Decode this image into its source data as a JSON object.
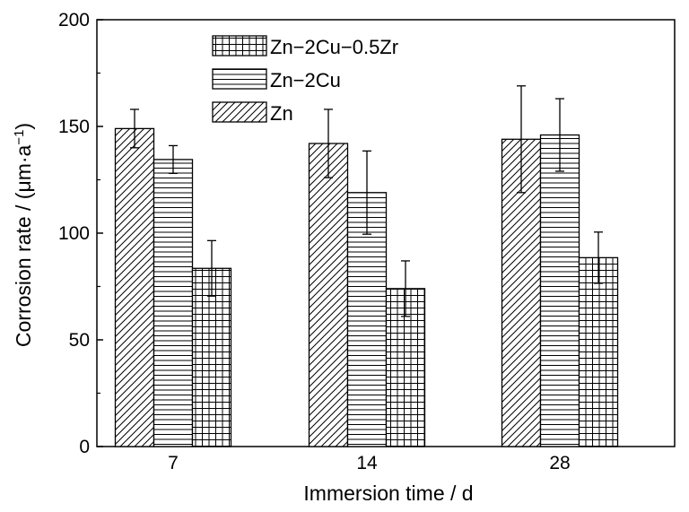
{
  "chart_data": {
    "type": "bar",
    "categories": [
      "7",
      "14",
      "28"
    ],
    "series": [
      {
        "name": "Zn",
        "pattern": "diagonal",
        "values": [
          149,
          142,
          144
        ],
        "errors": [
          9,
          16,
          25
        ]
      },
      {
        "name": "Zn−2Cu",
        "pattern": "horizontal",
        "values": [
          134.5,
          119,
          146
        ],
        "errors": [
          6.5,
          19.5,
          17
        ]
      },
      {
        "name": "Zn−2Cu−0.5Zr",
        "pattern": "grid",
        "values": [
          83.5,
          74,
          88.5
        ],
        "errors": [
          13,
          13,
          12
        ]
      }
    ],
    "legend_order": [
      "Zn−2Cu−0.5Zr",
      "Zn−2Cu",
      "Zn"
    ],
    "xlabel": "Immersion time / d",
    "ylabel": {
      "main": "Corrosion rate / (μm·a",
      "sup": "−1",
      "tail": ")"
    },
    "ylim": [
      0,
      200
    ],
    "yticks": [
      0,
      50,
      100,
      150,
      200
    ],
    "legend_position": "top-center",
    "grid": false,
    "colors": {
      "stroke": "#000000",
      "fill": "#ffffff"
    }
  }
}
